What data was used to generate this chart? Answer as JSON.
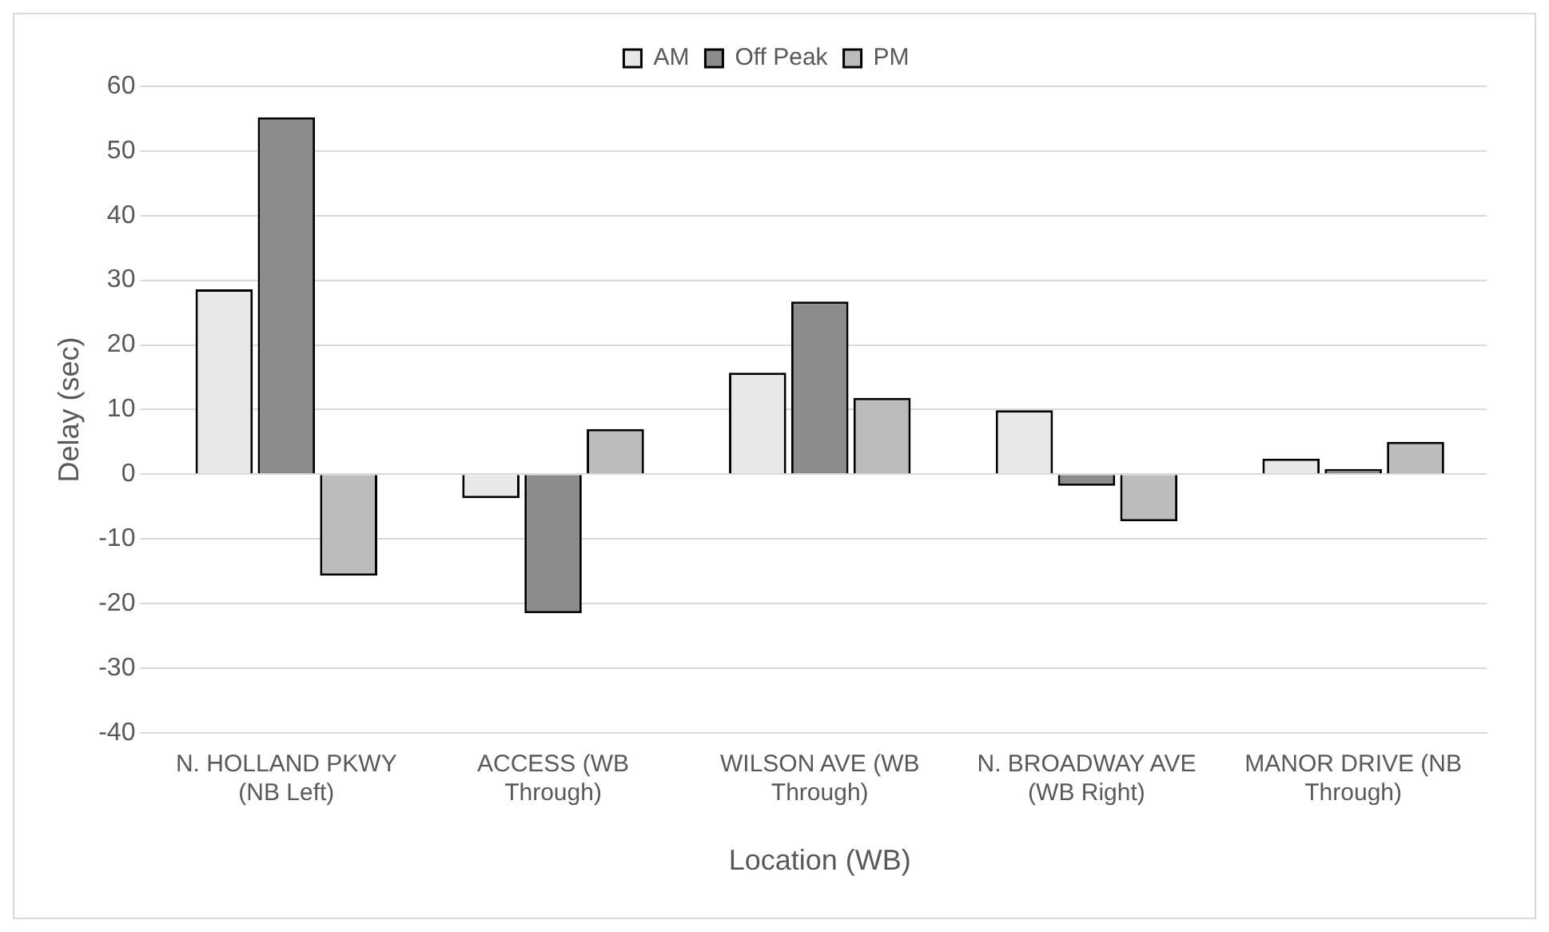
{
  "chart_data": {
    "type": "bar",
    "xlabel": "Location (WB)",
    "ylabel": "Delay (sec)",
    "categories": [
      "N. HOLLAND PKWY (NB Left)",
      "ACCESS (WB Through)",
      "WILSON AVE (WB Through)",
      "N. BROADWAY AVE (WB Right)",
      "MANOR DRIVE (NB Through)"
    ],
    "series": [
      {
        "name": "AM",
        "color": "#e8e8e8",
        "values": [
          28.6,
          -3.7,
          15.7,
          9.9,
          2.4
        ]
      },
      {
        "name": "Off Peak",
        "color": "#8c8c8c",
        "values": [
          55.2,
          -21.5,
          26.7,
          -1.8,
          0.8
        ]
      },
      {
        "name": "PM",
        "color": "#bcbcbc",
        "values": [
          -15.7,
          7,
          11.8,
          -7.3,
          5
        ]
      }
    ],
    "ylim": [
      -40,
      60
    ],
    "yticks": [
      -40,
      -30,
      -20,
      -10,
      0,
      10,
      20,
      30,
      40,
      50,
      60
    ],
    "grid": "y",
    "legend": "top"
  }
}
